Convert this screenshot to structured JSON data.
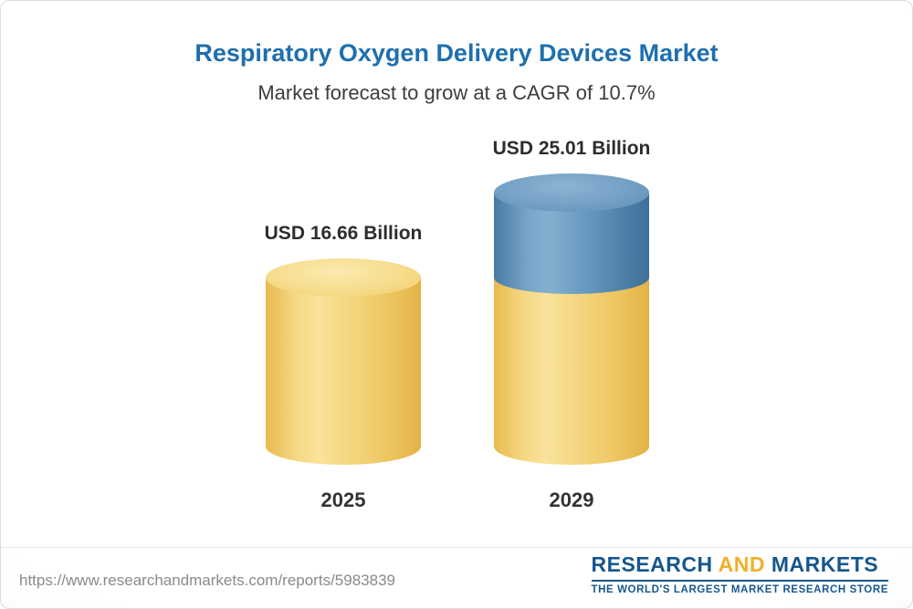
{
  "header": {
    "title": "Respiratory Oxygen Delivery Devices Market",
    "subtitle": "Market forecast to grow at a CAGR of 10.7%"
  },
  "chart_data": {
    "type": "bar",
    "bar_style": "3d-cylinder",
    "categories": [
      "2025",
      "2029"
    ],
    "values": [
      16.66,
      25.01
    ],
    "value_labels": [
      "USD 16.66 Billion",
      "USD 25.01 Billion"
    ],
    "unit": "USD Billion",
    "title": "Respiratory Oxygen Delivery Devices Market",
    "subtitle": "Market forecast to grow at a CAGR of 10.7%",
    "cagr_percent": 10.7,
    "legend_position": "none",
    "grid": false,
    "colors": {
      "base_gold": "#F2CF6E",
      "growth_blue": "#5E90B6",
      "title_blue": "#1E6FAE"
    }
  },
  "bars": [
    {
      "year": "2025",
      "value_label": "USD 16.66 Billion"
    },
    {
      "year": "2029",
      "value_label": "USD 25.01 Billion"
    }
  ],
  "footer": {
    "url": "https://www.researchandmarkets.com/reports/5983839",
    "logo": {
      "word1": "RESEARCH",
      "word2": "AND",
      "word3": "MARKETS",
      "tagline": "THE WORLD'S LARGEST MARKET RESEARCH STORE"
    }
  }
}
